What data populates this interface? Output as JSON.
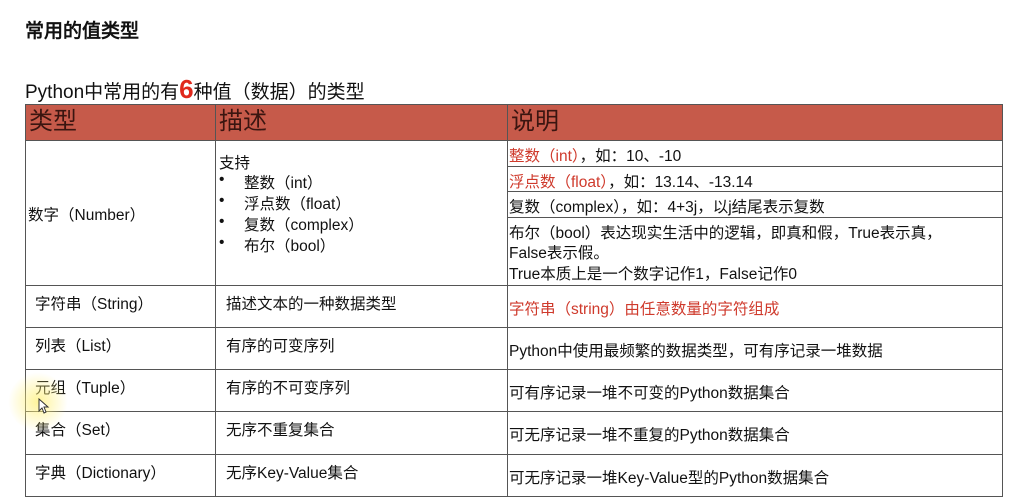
{
  "title": "常用的值类型",
  "subtitle": {
    "before": "Python中常用的有",
    "number": "6",
    "after": "种值（数据）的类型"
  },
  "table": {
    "headers": [
      "类型",
      "描述",
      "说明"
    ],
    "number_row": {
      "type": "数字（Number）",
      "desc_title": "支持",
      "desc_items": [
        "整数（int）",
        "浮点数（float）",
        "复数（complex）",
        "布尔（bool）"
      ],
      "notes": [
        {
          "red": "整数（int）",
          "rest": "，如：10、-10"
        },
        {
          "red": "浮点数（float）",
          "rest": "，如：13.14、-13.14"
        },
        {
          "red": "",
          "rest": "复数（complex），如：4+3j，以j结尾表示复数"
        },
        {
          "lines": [
            "布尔（bool）表达现实生活中的逻辑，即真和假，True表示真，",
            "False表示假。",
            "True本质上是一个数字记作1，False记作0"
          ]
        }
      ]
    },
    "rows": [
      {
        "type": "字符串（String）",
        "desc": "描述文本的一种数据类型",
        "note": "字符串（string）由任意数量的字符组成",
        "note_red": true
      },
      {
        "type": "列表（List）",
        "desc": "有序的可变序列",
        "note": "Python中使用最频繁的数据类型，可有序记录一堆数据"
      },
      {
        "type": "元组（Tuple）",
        "desc": "有序的不可变序列",
        "note": "可有序记录一堆不可变的Python数据集合"
      },
      {
        "type": "集合（Set）",
        "desc": "无序不重复集合",
        "note": "可无序记录一堆不重复的Python数据集合"
      },
      {
        "type": "字典（Dictionary）",
        "desc": "无序Key-Value集合",
        "note": "可无序记录一堆Key-Value型的Python数据集合"
      }
    ]
  },
  "colors": {
    "header_bg": "#c65a4a",
    "highlight_red": "#cf3a2c"
  }
}
